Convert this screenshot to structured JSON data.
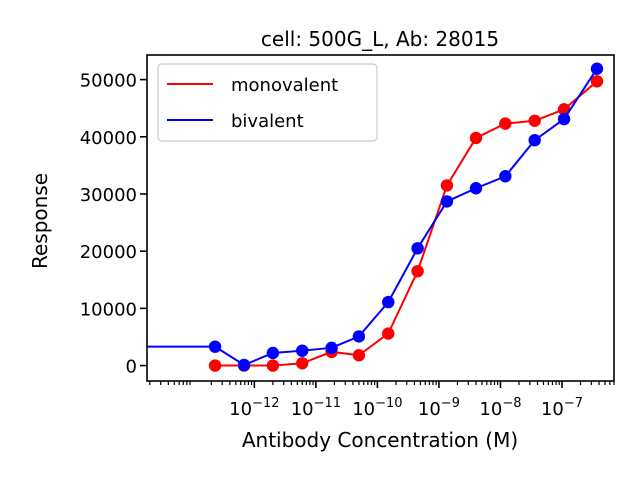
{
  "chart_data": {
    "type": "line",
    "title": "cell: 500G_L, Ab: 28015",
    "xlabel": "Antibody Concentration (M)",
    "ylabel": "Response",
    "x_scale": "log",
    "xlim": [
      1.8e-14,
      7e-07
    ],
    "ylim": [
      -2700,
      54300
    ],
    "grid": false,
    "legend_position": "top-left",
    "x_ticks": [
      {
        "value": 1e-12,
        "label": "10",
        "exp": "−12"
      },
      {
        "value": 1e-11,
        "label": "10",
        "exp": "−11"
      },
      {
        "value": 1e-10,
        "label": "10",
        "exp": "−10"
      },
      {
        "value": 1e-09,
        "label": "10",
        "exp": "−9"
      },
      {
        "value": 1e-08,
        "label": "10",
        "exp": "−8"
      },
      {
        "value": 1e-07,
        "label": "10",
        "exp": "−7"
      }
    ],
    "y_ticks": [
      {
        "value": 0,
        "label": "0"
      },
      {
        "value": 10000,
        "label": "10000"
      },
      {
        "value": 20000,
        "label": "20000"
      },
      {
        "value": 30000,
        "label": "30000"
      },
      {
        "value": 40000,
        "label": "40000"
      },
      {
        "value": 50000,
        "label": "50000"
      }
    ],
    "series": [
      {
        "name": "monovalent",
        "color": "#ff0000",
        "points": [
          [
            2.3e-13,
            0
          ],
          [
            6.8e-13,
            0
          ],
          [
            2e-12,
            0
          ],
          [
            6e-12,
            400
          ],
          [
            1.8e-11,
            2400
          ],
          [
            5e-11,
            1800
          ],
          [
            1.5e-10,
            5600
          ],
          [
            4.5e-10,
            16500
          ],
          [
            1.35e-09,
            31500
          ],
          [
            4e-09,
            39800
          ],
          [
            1.2e-08,
            42300
          ],
          [
            3.6e-08,
            42800
          ],
          [
            1.08e-07,
            44800
          ],
          [
            3.7e-07,
            49700
          ]
        ]
      },
      {
        "name": "bivalent",
        "color": "#0000ff",
        "line_start": [
          1.8e-14,
          3300
        ],
        "points": [
          [
            2.3e-13,
            3300
          ],
          [
            6.8e-13,
            100
          ],
          [
            2e-12,
            2200
          ],
          [
            6e-12,
            2600
          ],
          [
            1.8e-11,
            3100
          ],
          [
            5e-11,
            5100
          ],
          [
            1.5e-10,
            11100
          ],
          [
            4.5e-10,
            20500
          ],
          [
            1.35e-09,
            28700
          ],
          [
            4e-09,
            31000
          ],
          [
            1.2e-08,
            33100
          ],
          [
            3.6e-08,
            39400
          ],
          [
            1.08e-07,
            43100
          ],
          [
            3.7e-07,
            51900
          ]
        ]
      }
    ]
  }
}
